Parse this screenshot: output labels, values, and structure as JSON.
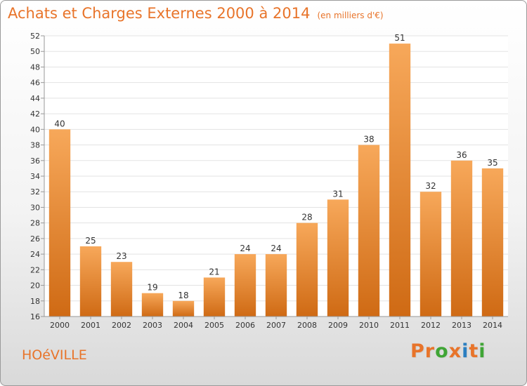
{
  "header": {
    "title": "Achats et Charges Externes 2000 à 2014",
    "unit": "(en milliers d'€)"
  },
  "footer": {
    "commune": "HOéVILLE",
    "logo_text": "Proxiti",
    "logo_colors": [
      "#e8742a",
      "#e8742a",
      "#3fa535",
      "#e8742a",
      "#2b7fc1",
      "#e8742a",
      "#3fa535"
    ]
  },
  "colors": {
    "accent": "#e8742a",
    "bar_top": "#f7a85a",
    "bar_bottom": "#cf6a14",
    "grid": "#e3e3e3",
    "axis": "#999999",
    "text": "#333333"
  },
  "chart_data": {
    "type": "bar",
    "title": "Achats et Charges Externes 2000 à 2014",
    "subtitle": "(en milliers d'€)",
    "categories": [
      "2000",
      "2001",
      "2002",
      "2003",
      "2004",
      "2005",
      "2006",
      "2007",
      "2008",
      "2009",
      "2010",
      "2011",
      "2012",
      "2013",
      "2014"
    ],
    "values": [
      40,
      25,
      23,
      19,
      18,
      21,
      24,
      24,
      28,
      31,
      38,
      51,
      32,
      36,
      35
    ],
    "ylim": [
      16,
      52
    ],
    "yticks": [
      16,
      18,
      20,
      22,
      24,
      26,
      28,
      30,
      32,
      34,
      36,
      38,
      40,
      42,
      44,
      46,
      48,
      50,
      52
    ],
    "grid": true,
    "data_labels": true,
    "legend": "none"
  }
}
